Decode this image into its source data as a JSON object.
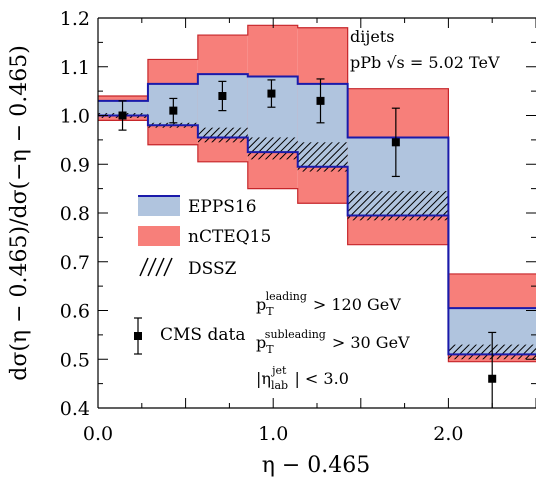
{
  "chart_data": {
    "type": "line",
    "xlabel": "η − 0.465",
    "ylabel": "dσ(η − 0.465)/dσ(−η − 0.465)",
    "xlim": [
      0.0,
      2.5
    ],
    "ylim": [
      0.4,
      1.2
    ],
    "x_ticks": [
      "0.0",
      "1.0",
      "2.0"
    ],
    "y_ticks": [
      "0.4",
      "0.5",
      "0.6",
      "0.7",
      "0.8",
      "0.9",
      "1.0",
      "1.1",
      "1.2"
    ],
    "annotation": {
      "line1": "dijets",
      "line2_prefix": "pPb",
      "line2_sqrt": "√s",
      "line2_suffix": "= 5.02 TeV"
    },
    "bin_edges": [
      0.0,
      0.285,
      0.57,
      0.855,
      1.14,
      1.425,
      2.0,
      2.5
    ],
    "series": [
      {
        "name": "nCTEQ15",
        "color": "#f77f7a",
        "edge_color": "#c6262a",
        "lower": [
          0.99,
          0.94,
          0.905,
          0.85,
          0.82,
          0.735,
          0.495
        ],
        "upper": [
          1.04,
          1.115,
          1.165,
          1.185,
          1.18,
          1.055,
          0.675
        ]
      },
      {
        "name": "EPPS16",
        "color": "#b0c4de",
        "edge_color": "#1a1aaa",
        "lower": [
          1.0,
          0.98,
          0.955,
          0.925,
          0.895,
          0.795,
          0.51
        ],
        "upper": [
          1.03,
          1.065,
          1.085,
          1.08,
          1.065,
          0.955,
          0.605
        ]
      },
      {
        "name": "DSSZ",
        "color": "#000000",
        "lower": [
          0.995,
          0.975,
          0.945,
          0.91,
          0.885,
          0.785,
          0.5
        ],
        "upper": [
          1.005,
          0.985,
          0.975,
          0.955,
          0.945,
          0.845,
          0.53
        ]
      }
    ],
    "points": {
      "name": "CMS data",
      "x": [
        0.14,
        0.43,
        0.71,
        0.99,
        1.27,
        1.7,
        2.25
      ],
      "y": [
        1.0,
        1.01,
        1.04,
        1.045,
        1.03,
        0.945,
        0.46
      ],
      "err": [
        0.03,
        0.025,
        0.03,
        0.028,
        0.045,
        0.07,
        0.095
      ]
    },
    "cuts": {
      "lead_lhs": "p",
      "lead_sub": "T",
      "lead_sup": "leading",
      "lead_rhs": "> 120 GeV",
      "sub_lhs": "p",
      "sub_sub": "T",
      "sub_sup": "subleading",
      "sub_rhs": "> 30 GeV",
      "eta_lhs": "|η",
      "eta_sub": "lab",
      "eta_sup": "jet",
      "eta_rhs": "| < 3.0"
    }
  }
}
